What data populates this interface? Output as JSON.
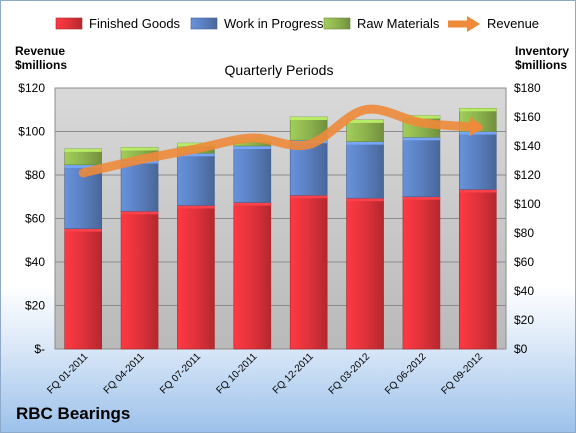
{
  "footer": "RBC Bearings",
  "chart_data": {
    "type": "bar",
    "stacked": true,
    "subtitle": "Quarterly Periods",
    "categories": [
      "FQ 01-2011",
      "FQ 04-2011",
      "FQ 07-2011",
      "FQ 10-2011",
      "FQ 12-2011",
      "FQ 03-2012",
      "FQ 06-2012",
      "FQ 09-2012"
    ],
    "series": [
      {
        "name": "Finished Goods",
        "axis": "right",
        "color": "#e0323a",
        "values": [
          83,
          95,
          99,
          101,
          106,
          104,
          105,
          110
        ]
      },
      {
        "name": "Work in Progress",
        "axis": "right",
        "color": "#5a7fbf",
        "values": [
          44,
          35,
          36,
          39,
          38,
          39,
          41,
          40
        ]
      },
      {
        "name": "Raw Materials",
        "axis": "right",
        "color": "#8db34e",
        "values": [
          11,
          9,
          7,
          5,
          16,
          15,
          15,
          16
        ]
      }
    ],
    "line": {
      "name": "Revenue",
      "axis": "left",
      "color": "#ee8a3a",
      "values": [
        81,
        87,
        92,
        97,
        94,
        110,
        104,
        102
      ]
    },
    "left_axis": {
      "label_lines": [
        "Revenue",
        "$millions"
      ],
      "ylim": [
        0,
        120
      ],
      "ticks": [
        "$-",
        "$20",
        "$40",
        "$60",
        "$80",
        "$100",
        "$120"
      ]
    },
    "right_axis": {
      "label_lines": [
        "Inventory",
        "$millions"
      ],
      "ylim": [
        0,
        180
      ],
      "ticks": [
        "$0",
        "$20",
        "$40",
        "$60",
        "$80",
        "$100",
        "$120",
        "$140",
        "$160",
        "$180"
      ]
    },
    "legend_position": "top",
    "grid": true
  }
}
